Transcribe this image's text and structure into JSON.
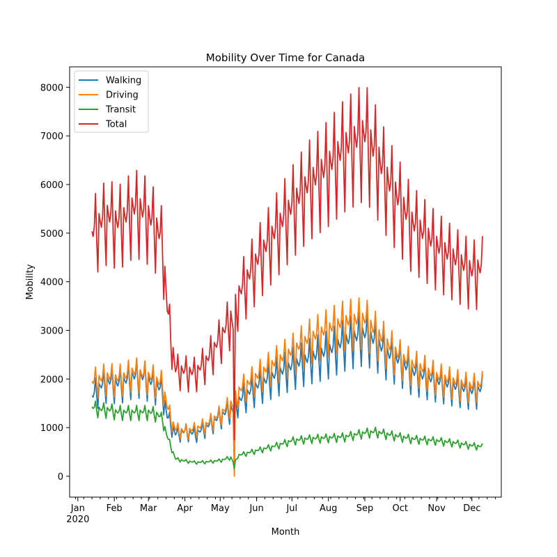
{
  "chart_data": {
    "type": "line",
    "title": "Mobility Over Time for Canada",
    "xlabel": "Month",
    "ylabel": "Mobility",
    "x_tick_labels": [
      "Jan\n2020",
      "Feb",
      "Mar",
      "Apr",
      "May",
      "Jun",
      "Jul",
      "Aug",
      "Sep",
      "Oct",
      "Nov",
      "Dec"
    ],
    "x_tick_dates": [
      "2020-01-01",
      "2020-02-01",
      "2020-03-01",
      "2020-04-01",
      "2020-05-01",
      "2020-06-01",
      "2020-07-01",
      "2020-08-01",
      "2020-09-01",
      "2020-10-01",
      "2020-11-01",
      "2020-12-01"
    ],
    "xlim": [
      "2019-12-25",
      "2020-12-26"
    ],
    "y_ticks": [
      0,
      1000,
      2000,
      3000,
      4000,
      5000,
      6000,
      7000,
      8000
    ],
    "ylim": [
      -430,
      8420
    ],
    "legend_position": "top-left",
    "grid": false,
    "series": [
      {
        "name": "Walking",
        "color": "#1f77b4",
        "anchors": [
          [
            "2020-01-13",
            1600
          ],
          [
            "2020-01-20",
            1800
          ],
          [
            "2020-01-27",
            1900
          ],
          [
            "2020-02-03",
            1850
          ],
          [
            "2020-02-10",
            1900
          ],
          [
            "2020-02-17",
            2000
          ],
          [
            "2020-02-24",
            2000
          ],
          [
            "2020-03-02",
            1900
          ],
          [
            "2020-03-09",
            1800
          ],
          [
            "2020-03-13",
            1700
          ],
          [
            "2020-03-17",
            1200
          ],
          [
            "2020-03-21",
            1000
          ],
          [
            "2020-03-24",
            850
          ],
          [
            "2020-04-01",
            900
          ],
          [
            "2020-04-10",
            850
          ],
          [
            "2020-04-20",
            1000
          ],
          [
            "2020-05-01",
            1200
          ],
          [
            "2020-05-10",
            1350
          ],
          [
            "2020-05-13",
            1300
          ],
          [
            "2020-05-16",
            1500
          ],
          [
            "2020-06-01",
            1800
          ],
          [
            "2020-06-15",
            2000
          ],
          [
            "2020-07-01",
            2200
          ],
          [
            "2020-07-15",
            2350
          ],
          [
            "2020-08-01",
            2500
          ],
          [
            "2020-08-15",
            2700
          ],
          [
            "2020-09-01",
            2850
          ],
          [
            "2020-09-10",
            2700
          ],
          [
            "2020-09-20",
            2450
          ],
          [
            "2020-10-01",
            2300
          ],
          [
            "2020-10-10",
            2100
          ],
          [
            "2020-10-20",
            2000
          ],
          [
            "2020-11-01",
            1900
          ],
          [
            "2020-11-15",
            1800
          ],
          [
            "2020-12-01",
            1700
          ],
          [
            "2020-12-10",
            1750
          ]
        ],
        "amplitude": 0.2,
        "dip": [
          "2020-05-13",
          600
        ]
      },
      {
        "name": "Driving",
        "color": "#ff7f0e",
        "anchors": [
          [
            "2020-01-13",
            1900
          ],
          [
            "2020-01-20",
            1950
          ],
          [
            "2020-01-27",
            2000
          ],
          [
            "2020-02-03",
            1950
          ],
          [
            "2020-02-10",
            2000
          ],
          [
            "2020-02-17",
            2100
          ],
          [
            "2020-02-24",
            2050
          ],
          [
            "2020-03-02",
            2000
          ],
          [
            "2020-03-09",
            1900
          ],
          [
            "2020-03-13",
            1850
          ],
          [
            "2020-03-17",
            1400
          ],
          [
            "2020-03-21",
            1100
          ],
          [
            "2020-03-24",
            950
          ],
          [
            "2020-04-01",
            900
          ],
          [
            "2020-04-10",
            950
          ],
          [
            "2020-04-20",
            1050
          ],
          [
            "2020-05-01",
            1250
          ],
          [
            "2020-05-10",
            1450
          ],
          [
            "2020-05-13",
            1400
          ],
          [
            "2020-05-16",
            1700
          ],
          [
            "2020-06-01",
            2000
          ],
          [
            "2020-06-15",
            2250
          ],
          [
            "2020-07-01",
            2500
          ],
          [
            "2020-07-15",
            2750
          ],
          [
            "2020-08-01",
            2950
          ],
          [
            "2020-08-15",
            3100
          ],
          [
            "2020-09-01",
            3150
          ],
          [
            "2020-09-10",
            2900
          ],
          [
            "2020-09-20",
            2650
          ],
          [
            "2020-10-01",
            2400
          ],
          [
            "2020-10-10",
            2250
          ],
          [
            "2020-10-20",
            2150
          ],
          [
            "2020-11-01",
            2000
          ],
          [
            "2020-11-15",
            1900
          ],
          [
            "2020-12-01",
            1800
          ],
          [
            "2020-12-10",
            1850
          ]
        ],
        "amplitude": 0.17,
        "dip": [
          "2020-05-13",
          0
        ]
      },
      {
        "name": "Transit",
        "color": "#2ca02c",
        "anchors": [
          [
            "2020-01-13",
            1400
          ],
          [
            "2020-01-20",
            1350
          ],
          [
            "2020-01-27",
            1350
          ],
          [
            "2020-02-03",
            1300
          ],
          [
            "2020-02-10",
            1300
          ],
          [
            "2020-02-17",
            1300
          ],
          [
            "2020-02-24",
            1300
          ],
          [
            "2020-03-02",
            1300
          ],
          [
            "2020-03-09",
            1250
          ],
          [
            "2020-03-13",
            1150
          ],
          [
            "2020-03-17",
            800
          ],
          [
            "2020-03-21",
            550
          ],
          [
            "2020-03-24",
            350
          ],
          [
            "2020-04-01",
            310
          ],
          [
            "2020-04-10",
            280
          ],
          [
            "2020-04-20",
            290
          ],
          [
            "2020-05-01",
            320
          ],
          [
            "2020-05-10",
            380
          ],
          [
            "2020-05-13",
            250
          ],
          [
            "2020-05-16",
            420
          ],
          [
            "2020-06-01",
            520
          ],
          [
            "2020-06-15",
            600
          ],
          [
            "2020-07-01",
            720
          ],
          [
            "2020-07-15",
            760
          ],
          [
            "2020-08-01",
            780
          ],
          [
            "2020-08-15",
            800
          ],
          [
            "2020-09-01",
            880
          ],
          [
            "2020-09-10",
            900
          ],
          [
            "2020-09-20",
            850
          ],
          [
            "2020-10-01",
            800
          ],
          [
            "2020-10-10",
            760
          ],
          [
            "2020-10-20",
            740
          ],
          [
            "2020-11-01",
            720
          ],
          [
            "2020-11-15",
            680
          ],
          [
            "2020-12-01",
            620
          ],
          [
            "2020-12-10",
            600
          ]
        ],
        "amplitude": 0.12,
        "dip": [
          "2020-05-13",
          150
        ]
      }
    ]
  }
}
